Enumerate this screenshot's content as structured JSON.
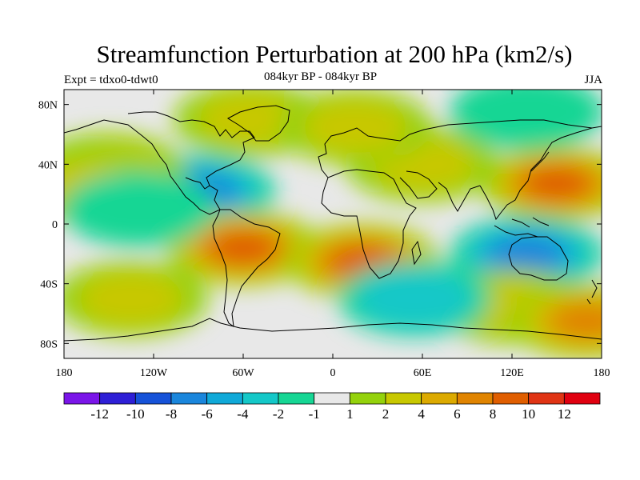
{
  "title": "Streamfunction Perturbation at 200 hPa (km2/s)",
  "left_string": "Expt = tdxo0-tdwt0",
  "center_string": "084kyr BP - 084kyr BP",
  "right_string": "JJA",
  "map": {
    "projection": "cylindrical-equidistant",
    "lon_range": [
      -180,
      180
    ],
    "lat_range": [
      -90,
      90
    ],
    "lon_tick_labels": [
      "180",
      "120W",
      "60W",
      "0",
      "60E",
      "120E",
      "180"
    ],
    "lat_tick_labels": [
      "80N",
      "40N",
      "0",
      "40S",
      "80S"
    ]
  },
  "colorbar": {
    "labels": [
      "-12",
      "-10",
      "-8",
      "-6",
      "-4",
      "-2",
      "-1",
      "1",
      "2",
      "4",
      "6",
      "8",
      "10",
      "12"
    ],
    "colors": [
      "#7a15e8",
      "#2e1fd6",
      "#1652d8",
      "#1a86dc",
      "#10a9d8",
      "#14c8c8",
      "#16d694",
      "#e8e8e8",
      "#94d20c",
      "#c8c800",
      "#dcaa00",
      "#e08400",
      "#e05e00",
      "#e03414",
      "#e00010"
    ]
  },
  "chart_data": {
    "type": "heatmap",
    "title": "Streamfunction Perturbation at 200 hPa (km2/s)",
    "subtitle": "084kyr BP - 084kyr BP",
    "xlim": [
      -180,
      180
    ],
    "ylim": [
      -90,
      90
    ],
    "contour_levels": [
      -12,
      -10,
      -8,
      -6,
      -4,
      -2,
      -1,
      1,
      2,
      4,
      6,
      8,
      10,
      12
    ],
    "features": [
      {
        "lon": -90,
        "lat": 22,
        "value": -7
      },
      {
        "lon": -150,
        "lat": 36,
        "value": 2
      },
      {
        "lon": -165,
        "lat": 25,
        "value": 3
      },
      {
        "lon": -60,
        "lat": -16,
        "value": 8
      },
      {
        "lon": 20,
        "lat": -25,
        "value": 8
      },
      {
        "lon": 150,
        "lat": 27,
        "value": 8
      },
      {
        "lon": 130,
        "lat": -20,
        "value": -7
      },
      {
        "lon": 60,
        "lat": 40,
        "value": 2
      },
      {
        "lon": 120,
        "lat": -55,
        "value": 3
      },
      {
        "lon": -135,
        "lat": -50,
        "value": 3
      },
      {
        "lon": 55,
        "lat": -50,
        "value": -4
      },
      {
        "lon": -55,
        "lat": 70,
        "value": 2
      },
      {
        "lon": 15,
        "lat": 65,
        "value": 3
      },
      {
        "lon": 130,
        "lat": 75,
        "value": -2
      },
      {
        "lon": -130,
        "lat": 10,
        "value": -2
      },
      {
        "lon": 170,
        "lat": -65,
        "value": 6
      }
    ]
  }
}
